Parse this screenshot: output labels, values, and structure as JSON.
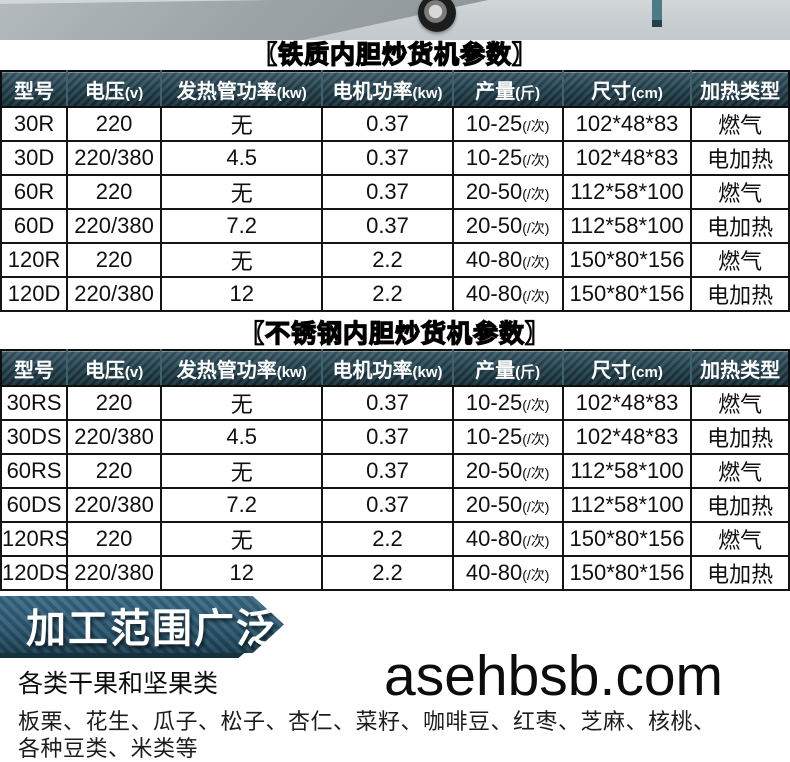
{
  "iron_table": {
    "title": "【铁质内胆炒货机参数】",
    "headers": [
      {
        "label": "型号",
        "sub": ""
      },
      {
        "label": "电压",
        "sub": "(v)"
      },
      {
        "label": "发热管功率",
        "sub": "(kw)"
      },
      {
        "label": "电机功率",
        "sub": "(kw)"
      },
      {
        "label": "产量",
        "sub": "(斤)"
      },
      {
        "label": "尺寸",
        "sub": "(cm)"
      },
      {
        "label": "加热类型",
        "sub": ""
      }
    ],
    "rows": [
      {
        "model": "30R",
        "voltage": "220",
        "heater_kw": "无",
        "motor_kw": "0.37",
        "output": "10-25",
        "output_unit": "(/次)",
        "size": "102*48*83",
        "heating": "燃气"
      },
      {
        "model": "30D",
        "voltage": "220/380",
        "heater_kw": "4.5",
        "motor_kw": "0.37",
        "output": "10-25",
        "output_unit": "(/次)",
        "size": "102*48*83",
        "heating": "电加热"
      },
      {
        "model": "60R",
        "voltage": "220",
        "heater_kw": "无",
        "motor_kw": "0.37",
        "output": "20-50",
        "output_unit": "(/次)",
        "size": "112*58*100",
        "heating": "燃气"
      },
      {
        "model": "60D",
        "voltage": "220/380",
        "heater_kw": "7.2",
        "motor_kw": "0.37",
        "output": "20-50",
        "output_unit": "(/次)",
        "size": "112*58*100",
        "heating": "电加热"
      },
      {
        "model": "120R",
        "voltage": "220",
        "heater_kw": "无",
        "motor_kw": "2.2",
        "output": "40-80",
        "output_unit": "(/次)",
        "size": "150*80*156",
        "heating": "燃气"
      },
      {
        "model": "120D",
        "voltage": "220/380",
        "heater_kw": "12",
        "motor_kw": "2.2",
        "output": "40-80",
        "output_unit": "(/次)",
        "size": "150*80*156",
        "heating": "电加热"
      }
    ]
  },
  "steel_table": {
    "title": "【不锈钢内胆炒货机参数】",
    "headers": [
      {
        "label": "型号",
        "sub": ""
      },
      {
        "label": "电压",
        "sub": "(v)"
      },
      {
        "label": "发热管功率",
        "sub": "(kw)"
      },
      {
        "label": "电机功率",
        "sub": "(kw)"
      },
      {
        "label": "产量",
        "sub": "(斤)"
      },
      {
        "label": "尺寸",
        "sub": "(cm)"
      },
      {
        "label": "加热类型",
        "sub": ""
      }
    ],
    "rows": [
      {
        "model": "30RS",
        "voltage": "220",
        "heater_kw": "无",
        "motor_kw": "0.37",
        "output": "10-25",
        "output_unit": "(/次)",
        "size": "102*48*83",
        "heating": "燃气"
      },
      {
        "model": "30DS",
        "voltage": "220/380",
        "heater_kw": "4.5",
        "motor_kw": "0.37",
        "output": "10-25",
        "output_unit": "(/次)",
        "size": "102*48*83",
        "heating": "电加热"
      },
      {
        "model": "60RS",
        "voltage": "220",
        "heater_kw": "无",
        "motor_kw": "0.37",
        "output": "20-50",
        "output_unit": "(/次)",
        "size": "112*58*100",
        "heating": "燃气"
      },
      {
        "model": "60DS",
        "voltage": "220/380",
        "heater_kw": "7.2",
        "motor_kw": "0.37",
        "output": "20-50",
        "output_unit": "(/次)",
        "size": "112*58*100",
        "heating": "电加热"
      },
      {
        "model": "120RS",
        "voltage": "220",
        "heater_kw": "无",
        "motor_kw": "2.2",
        "output": "40-80",
        "output_unit": "(/次)",
        "size": "150*80*156",
        "heating": "燃气"
      },
      {
        "model": "120DS",
        "voltage": "220/380",
        "heater_kw": "12",
        "motor_kw": "2.2",
        "output": "40-80",
        "output_unit": "(/次)",
        "size": "150*80*156",
        "heating": "电加热"
      }
    ]
  },
  "banner": {
    "title": "加工范围广泛"
  },
  "foods": {
    "heading": "各类干果和坚果类",
    "line1": "板栗、花生、瓜子、松子、杏仁、菜籽、咖啡豆、红枣、芝麻、核桃、",
    "line2": "各种豆类、米类等"
  },
  "watermark": "asehbsb.com",
  "colors": {
    "header_bg": "#254450",
    "banner": "#2d5a73",
    "banner_shadow": "#16323f",
    "table_border": "#141414",
    "photo_bg": "#c7cdd0",
    "leg_teal": "#4d7b85"
  }
}
